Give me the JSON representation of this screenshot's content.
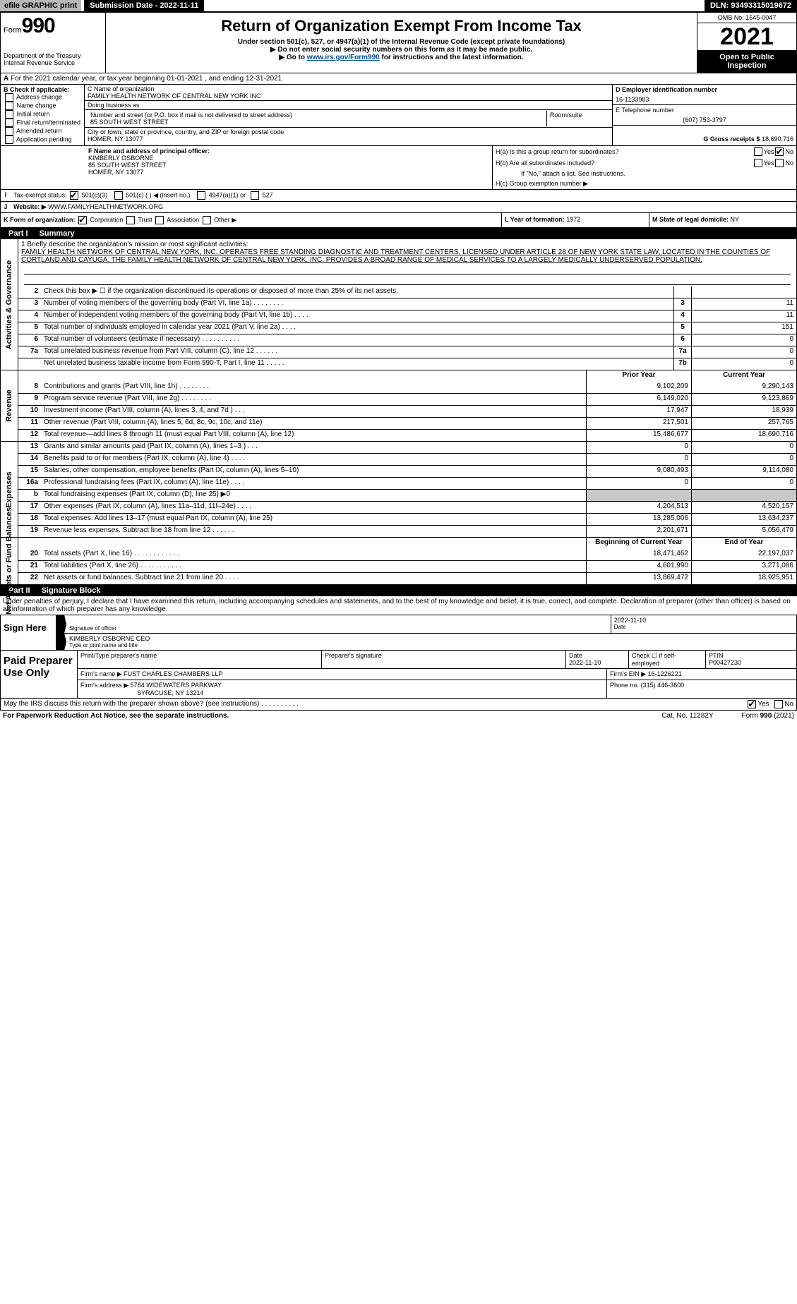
{
  "top": {
    "efile": "efile GRAPHIC print",
    "submission": "Submission Date - 2022-11-11",
    "dln": "DLN: 93493315019672"
  },
  "header": {
    "form": "Form",
    "formnum": "990",
    "dept": "Department of the Treasury",
    "irs": "Internal Revenue Service",
    "title": "Return of Organization Exempt From Income Tax",
    "sub1": "Under section 501(c), 527, or 4947(a)(1) of the Internal Revenue Code (except private foundations)",
    "sub2": "▶ Do not enter social security numbers on this form as it may be made public.",
    "sub3_pre": "▶ Go to ",
    "sub3_link": "www.irs.gov/Form990",
    "sub3_post": " for instructions and the latest information.",
    "omb": "OMB No. 1545-0047",
    "year": "2021",
    "open": "Open to Public Inspection"
  },
  "row_a": "For the 2021 calendar year, or tax year beginning 01-01-2021    , and ending 12-31-2021",
  "box_b": {
    "label": "B Check if applicable:",
    "opts": [
      "Address change",
      "Name change",
      "Initial return",
      "Final return/terminated",
      "Amended return",
      "Application pending"
    ]
  },
  "box_c": {
    "c_label": "C Name of organization",
    "c_name": "FAMILY HEALTH NETWORK OF CENTRAL NEW YORK INC",
    "dba_label": "Doing business as",
    "dba": "",
    "addr_label": "Number and street (or P.O. box if mail is not delivered to street address)",
    "room_label": "Room/suite",
    "addr": "85 SOUTH WEST STREET",
    "city_label": "City or town, state or province, country, and ZIP or foreign postal code",
    "city": "HOMER, NY  13077"
  },
  "box_d": {
    "d_label": "D Employer identification number",
    "ein": "16-1133983",
    "e_label": "E Telephone number",
    "phone": "(607) 753-3797",
    "g_label": "G Gross receipts $",
    "g_val": "18,690,716"
  },
  "box_f": {
    "label": "F Name and address of principal officer:",
    "name": "KIMBERLY OSBORNE",
    "addr": "85 SOUTH WEST STREET",
    "city": "HOMER, NY  13077"
  },
  "box_h": {
    "ha": "H(a)  Is this a group return for subordinates?",
    "hb": "H(b)  Are all subordinates included?",
    "hb_note": "If \"No,\" attach a list. See instructions.",
    "hc": "H(c)  Group exemption number ▶",
    "yes": "Yes",
    "no": "No"
  },
  "row_i": {
    "label": "Tax-exempt status:",
    "opts": [
      "501(c)(3)",
      "501(c) (  ) ◀ (insert no.)",
      "4947(a)(1) or",
      "527"
    ]
  },
  "row_j": {
    "label": "Website: ▶",
    "val": "WWW.FAMILYHEALTHNETWORK.ORG"
  },
  "row_k": {
    "label": "K Form of organization:",
    "opts": [
      "Corporation",
      "Trust",
      "Association",
      "Other ▶"
    ]
  },
  "row_l": {
    "label": "L Year of formation:",
    "val": "1972"
  },
  "row_m": {
    "label": "M State of legal domicile:",
    "val": "NY"
  },
  "part1": {
    "num": "Part I",
    "title": "Summary"
  },
  "mission": {
    "q": "1 Briefly describe the organization's mission or most significant activities:",
    "text": "FAMILY HEALTH NETWORK OF CENTRAL NEW YORK, INC. OPERATES FREE STANDING DIAGNOSTIC AND TREATMENT CENTERS, LICENSED UNDER ARTICLE 28 OF NEW YORK STATE LAW, LOCATED IN THE COUNTIES OF CORTLAND AND CAYUGA. THE FAMILY HEALTH NETWORK OF CENTRAL NEW YORK, INC. PROVIDES A BROAD RANGE OF MEDICAL SERVICES TO A LARGELY MEDICALLY UNDERSERVED POPULATION."
  },
  "gov_rows": [
    {
      "n": "2",
      "d": "Check this box ▶ ☐ if the organization discontinued its operations or disposed of more than 25% of its net assets.",
      "box": "",
      "v": ""
    },
    {
      "n": "3",
      "d": "Number of voting members of the governing body (Part VI, line 1a)  .  .  .  .  .  .  .  .",
      "box": "3",
      "v": "11"
    },
    {
      "n": "4",
      "d": "Number of independent voting members of the governing body (Part VI, line 1b)  .  .  .  .",
      "box": "4",
      "v": "11"
    },
    {
      "n": "5",
      "d": "Total number of individuals employed in calendar year 2021 (Part V, line 2a)  .  .  .  .",
      "box": "5",
      "v": "151"
    },
    {
      "n": "6",
      "d": "Total number of volunteers (estimate if necessary)  .  .  .  .  .  .  .  .  .  .",
      "box": "6",
      "v": "0"
    },
    {
      "n": "7a",
      "d": "Total unrelated business revenue from Part VIII, column (C), line 12  .  .  .  .  .  .",
      "box": "7a",
      "v": "0"
    },
    {
      "n": "",
      "d": "Net unrelated business taxable income from Form 990-T, Part I, line 11  .  .  .  .  .",
      "box": "7b",
      "v": "0"
    }
  ],
  "col_headers": {
    "prior": "Prior Year",
    "current": "Current Year"
  },
  "rev_rows": [
    {
      "n": "8",
      "d": "Contributions and grants (Part VIII, line 1h)  .  .  .  .  .  .  .  .",
      "p": "9,102,209",
      "c": "9,290,143"
    },
    {
      "n": "9",
      "d": "Program service revenue (Part VIII, line 2g)  .  .  .  .  .  .  .  .",
      "p": "6,149,020",
      "c": "9,123,869"
    },
    {
      "n": "10",
      "d": "Investment income (Part VIII, column (A), lines 3, 4, and 7d )  .  .  .",
      "p": "17,947",
      "c": "18,939"
    },
    {
      "n": "11",
      "d": "Other revenue (Part VIII, column (A), lines 5, 6d, 8c, 9c, 10c, and 11e)",
      "p": "217,501",
      "c": "257,765"
    },
    {
      "n": "12",
      "d": "Total revenue—add lines 8 through 11 (must equal Part VIII, column (A), line 12)",
      "p": "15,486,677",
      "c": "18,690,716"
    }
  ],
  "exp_rows": [
    {
      "n": "13",
      "d": "Grants and similar amounts paid (Part IX, column (A), lines 1–3 )  .  .  .",
      "p": "0",
      "c": "0"
    },
    {
      "n": "14",
      "d": "Benefits paid to or for members (Part IX, column (A), line 4)  .  .  .  .",
      "p": "0",
      "c": "0"
    },
    {
      "n": "15",
      "d": "Salaries, other compensation, employee benefits (Part IX, column (A), lines 5–10)",
      "p": "9,080,493",
      "c": "9,114,080"
    },
    {
      "n": "16a",
      "d": "Professional fundraising fees (Part IX, column (A), line 11e)  .  .  .  .",
      "p": "0",
      "c": "0"
    },
    {
      "n": "b",
      "d": "Total fundraising expenses (Part IX, column (D), line 25) ▶0",
      "p": "",
      "c": "",
      "shaded": true
    },
    {
      "n": "17",
      "d": "Other expenses (Part IX, column (A), lines 11a–11d, 11f–24e)  .  .  .  .",
      "p": "4,204,513",
      "c": "4,520,157"
    },
    {
      "n": "18",
      "d": "Total expenses. Add lines 13–17 (must equal Part IX, column (A), line 25)",
      "p": "13,285,006",
      "c": "13,634,237"
    },
    {
      "n": "19",
      "d": "Revenue less expenses. Subtract line 18 from line 12  .  .  .  .  .  .",
      "p": "2,201,671",
      "c": "5,056,479"
    }
  ],
  "net_headers": {
    "beg": "Beginning of Current Year",
    "end": "End of Year"
  },
  "net_rows": [
    {
      "n": "20",
      "d": "Total assets (Part X, line 16)  .  .  .  .  .  .  .  .  .  .  .  .",
      "p": "18,471,462",
      "c": "22,197,037"
    },
    {
      "n": "21",
      "d": "Total liabilities (Part X, line 26)  .  .  .  .  .  .  .  .  .  .  .",
      "p": "4,601,990",
      "c": "3,271,086"
    },
    {
      "n": "22",
      "d": "Net assets or fund balances. Subtract line 21 from line 20  .  .  .  .",
      "p": "13,869,472",
      "c": "18,925,951"
    }
  ],
  "part2": {
    "num": "Part II",
    "title": "Signature Block"
  },
  "declare": "Under penalties of perjury, I declare that I have examined this return, including accompanying schedules and statements, and to the best of my knowledge and belief, it is true, correct, and complete. Declaration of preparer (other than officer) is based on all information of which preparer has any knowledge.",
  "sign": {
    "here": "Sign Here",
    "sig_label": "Signature of officer",
    "date_label": "Date",
    "date": "2022-11-10",
    "name": "KIMBERLY OSBORNE  CEO",
    "name_label": "Type or print name and title"
  },
  "paid": {
    "title": "Paid Preparer Use Only",
    "r1": {
      "l1": "Print/Type preparer's name",
      "l2": "Preparer's signature",
      "l3": "Date",
      "d": "2022-11-10",
      "l4": "Check ☐ if self-employed",
      "l5": "PTIN",
      "ptin": "P00427230"
    },
    "r2": {
      "l": "Firm's name    ▶",
      "v": "FUST CHARLES CHAMBERS LLP",
      "ein_l": "Firm's EIN ▶",
      "ein": "16-1226221"
    },
    "r3": {
      "l": "Firm's address ▶",
      "v": "5784 WIDEWATERS PARKWAY",
      "v2": "SYRACUSE, NY  13214",
      "ph_l": "Phone no.",
      "ph": "(315) 446-3600"
    }
  },
  "foot_q": "May the IRS discuss this return with the preparer shown above? (see instructions)  .  .  .  .  .  .  .  .  .  .",
  "foot_yes": "Yes",
  "foot_no": "No",
  "bottom_l": "For Paperwork Reduction Act Notice, see the separate instructions.",
  "bottom_m": "Cat. No. 11282Y",
  "bottom_r": "Form 990 (2021)",
  "side_labels": {
    "gov": "Activities & Governance",
    "rev": "Revenue",
    "exp": "Expenses",
    "net": "Net Assets or Fund Balances"
  }
}
